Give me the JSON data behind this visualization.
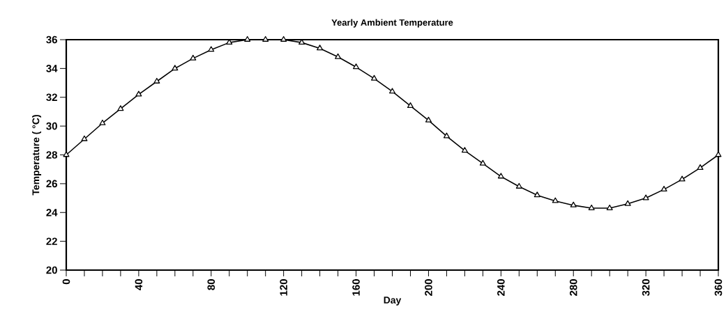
{
  "chart_data": {
    "type": "line",
    "title": "Yearly Ambient Temperature",
    "xlabel": "Day",
    "ylabel": "Temperature ( °C)",
    "x": [
      0,
      10,
      20,
      30,
      40,
      50,
      60,
      70,
      80,
      90,
      100,
      110,
      120,
      130,
      140,
      150,
      160,
      170,
      180,
      190,
      200,
      210,
      220,
      230,
      240,
      250,
      260,
      270,
      280,
      290,
      300,
      310,
      320,
      330,
      340,
      350,
      360
    ],
    "series": [
      {
        "color": "#000000",
        "values": [
          28.0,
          29.1,
          30.2,
          31.2,
          32.2,
          33.1,
          34.0,
          34.7,
          35.3,
          35.8,
          36.0,
          36.0,
          36.0,
          35.8,
          35.4,
          34.8,
          34.1,
          33.3,
          32.4,
          31.4,
          30.4,
          29.3,
          28.3,
          27.4,
          26.5,
          25.8,
          25.2,
          24.8,
          24.5,
          24.3,
          24.3,
          24.6,
          25.0,
          25.6,
          26.3,
          27.1,
          28.0
        ]
      }
    ],
    "xlim": [
      0,
      360
    ],
    "xticks": [
      0,
      {
        "value": 10,
        "label": null
      },
      {
        "value": 20,
        "label": null
      },
      {
        "value": 30,
        "label": null
      },
      40,
      {
        "value": 50,
        "label": null
      },
      {
        "value": 60,
        "label": null
      },
      {
        "value": 70,
        "label": null
      },
      80,
      {
        "value": 90,
        "label": null
      },
      {
        "value": 100,
        "label": null
      },
      {
        "value": 110,
        "label": null
      },
      120,
      {
        "value": 130,
        "label": null
      },
      {
        "value": 140,
        "label": null
      },
      {
        "value": 150,
        "label": null
      },
      160,
      {
        "value": 170,
        "label": null
      },
      {
        "value": 180,
        "label": null
      },
      {
        "value": 190,
        "label": null
      },
      200,
      {
        "value": 210,
        "label": null
      },
      {
        "value": 220,
        "label": null
      },
      {
        "value": 230,
        "label": null
      },
      240,
      {
        "value": 250,
        "label": null
      },
      {
        "value": 260,
        "label": null
      },
      {
        "value": 270,
        "label": null
      },
      280,
      {
        "value": 290,
        "label": null
      },
      {
        "value": 300,
        "label": null
      },
      {
        "value": 310,
        "label": null
      },
      320,
      {
        "value": 330,
        "label": null
      },
      {
        "value": 340,
        "label": null
      },
      {
        "value": 350,
        "label": null
      },
      360
    ],
    "ylim": [
      20,
      36
    ],
    "yticks": [
      20,
      22,
      24,
      26,
      28,
      30,
      32,
      34,
      36
    ],
    "marker": "triangle",
    "line_style": "solid",
    "grid": false
  }
}
